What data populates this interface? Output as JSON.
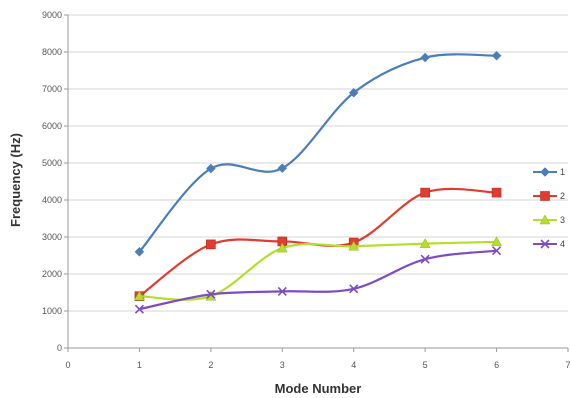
{
  "chart_data": {
    "type": "line",
    "title": "",
    "xlabel": "Mode Number",
    "ylabel": "Frequency (Hz)",
    "xlim": [
      0,
      7
    ],
    "ylim": [
      0,
      9000
    ],
    "x_ticks": [
      "0",
      "1",
      "2",
      "3",
      "4",
      "5",
      "6",
      "7"
    ],
    "y_ticks": [
      "0",
      "1000",
      "2000",
      "3000",
      "4000",
      "5000",
      "6000",
      "7000",
      "8000",
      "9000"
    ],
    "grid": "horizontal",
    "smooth": true,
    "legend_position": "right",
    "x": [
      1,
      2,
      3,
      4,
      5,
      6
    ],
    "series": [
      {
        "name": "1",
        "color": "#4a7ebb",
        "marker": "diamond",
        "values": [
          2600,
          4850,
          4860,
          6900,
          7850,
          7900
        ]
      },
      {
        "name": "2",
        "color": "#e03c31",
        "marker": "square",
        "values": [
          1400,
          2800,
          2880,
          2850,
          4200,
          4200
        ]
      },
      {
        "name": "3",
        "color": "#b5de2a",
        "marker": "triangle",
        "values": [
          1400,
          1400,
          2700,
          2750,
          2820,
          2870
        ]
      },
      {
        "name": "4",
        "color": "#7d4cc4",
        "marker": "x",
        "values": [
          1050,
          1450,
          1530,
          1600,
          2400,
          2630
        ]
      }
    ]
  }
}
